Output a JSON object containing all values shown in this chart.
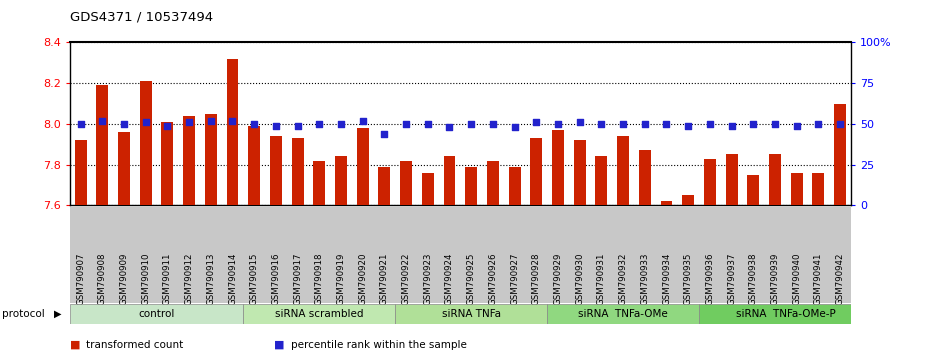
{
  "title": "GDS4371 / 10537494",
  "samples": [
    "GSM790907",
    "GSM790908",
    "GSM790909",
    "GSM790910",
    "GSM790911",
    "GSM790912",
    "GSM790913",
    "GSM790914",
    "GSM790915",
    "GSM790916",
    "GSM790917",
    "GSM790918",
    "GSM790919",
    "GSM790920",
    "GSM790921",
    "GSM790922",
    "GSM790923",
    "GSM790924",
    "GSM790925",
    "GSM790926",
    "GSM790927",
    "GSM790928",
    "GSM790929",
    "GSM790930",
    "GSM790931",
    "GSM790932",
    "GSM790933",
    "GSM790934",
    "GSM790935",
    "GSM790936",
    "GSM790937",
    "GSM790938",
    "GSM790939",
    "GSM790940",
    "GSM790941",
    "GSM790942"
  ],
  "bar_values": [
    7.92,
    8.19,
    7.96,
    8.21,
    8.01,
    8.04,
    8.05,
    8.32,
    7.99,
    7.94,
    7.93,
    7.82,
    7.84,
    7.98,
    7.79,
    7.82,
    7.76,
    7.84,
    7.79,
    7.82,
    7.79,
    7.93,
    7.97,
    7.92,
    7.84,
    7.94,
    7.87,
    7.62,
    7.65,
    7.83,
    7.85,
    7.75,
    7.85,
    7.76,
    7.76,
    8.1
  ],
  "percentile_values": [
    50,
    52,
    50,
    51,
    49,
    51,
    52,
    52,
    50,
    49,
    49,
    50,
    50,
    52,
    44,
    50,
    50,
    48,
    50,
    50,
    48,
    51,
    50,
    51,
    50,
    50,
    50,
    50,
    49,
    50,
    49,
    50,
    50,
    49,
    50,
    50
  ],
  "groups": [
    {
      "label": "control",
      "start": 0,
      "end": 8,
      "color": "#c8e6c8"
    },
    {
      "label": "siRNA scrambled",
      "start": 8,
      "end": 15,
      "color": "#c0e8b0"
    },
    {
      "label": "siRNA TNFa",
      "start": 15,
      "end": 22,
      "color": "#b0e098"
    },
    {
      "label": "siRNA  TNFa-OMe",
      "start": 22,
      "end": 29,
      "color": "#90d880"
    },
    {
      "label": "siRNA  TNFa-OMe-P",
      "start": 29,
      "end": 37,
      "color": "#70cc60"
    }
  ],
  "ylim_left": [
    7.6,
    8.4
  ],
  "ylim_right": [
    0,
    100
  ],
  "bar_color": "#cc2200",
  "dot_color": "#2222cc",
  "yticks_left": [
    7.6,
    7.8,
    8.0,
    8.2,
    8.4
  ],
  "yticks_right": [
    0,
    25,
    50,
    75,
    100
  ]
}
